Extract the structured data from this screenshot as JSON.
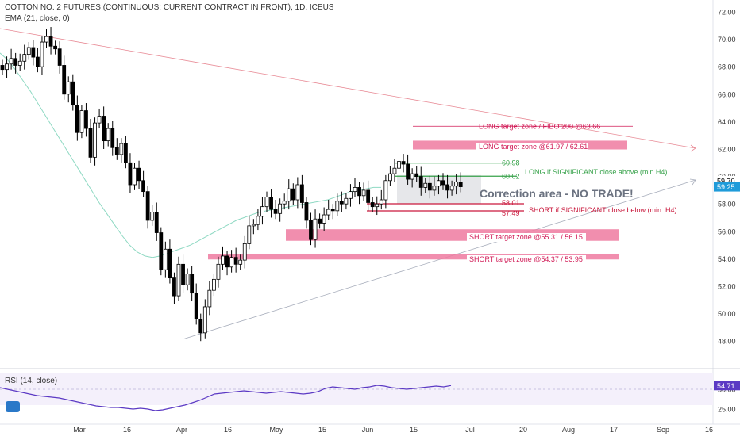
{
  "header": {
    "title": "COTTON NO. 2 FUTURES (CONTINUOUS: CURRENT CONTRACT IN FRONT), 1D, ICEUS",
    "indicator": "EMA (21, close, 0)"
  },
  "rsi": {
    "label": "RSI (14, close)",
    "value": "54.71",
    "ticks": [
      "50.00",
      "25.00"
    ]
  },
  "colors": {
    "up": "#ffffff",
    "down": "#000000",
    "ema": "#8fd9c3",
    "upper_trend": "#e88a95",
    "lower_trend": "#a7adbb",
    "zone": "#ef7aa0",
    "long_text": "#d11a56",
    "green": "#37a24a",
    "red": "#c9183c",
    "rsi": "#5b39c4",
    "price_badge": "#1f9bd9"
  },
  "chart_data": {
    "type": "candlestick",
    "y_ticks": [
      48,
      50,
      52,
      54,
      56,
      58,
      60,
      62,
      64,
      66,
      68,
      70,
      72
    ],
    "y_tick_labels": [
      "48.00",
      "50.00",
      "52.00",
      "54.00",
      "56.00",
      "58.00",
      "60.00",
      "62.00",
      "64.00",
      "66.00",
      "68.00",
      "70.00",
      "72.00"
    ],
    "x_labels": [
      "Mar",
      "16",
      "Apr",
      "16",
      "May",
      "15",
      "Jun",
      "15",
      "Jul",
      "20",
      "Aug",
      "17",
      "Sep",
      "16"
    ],
    "last_price": "59.25",
    "marked_price": "59.70",
    "closes": [
      67.8,
      68.2,
      68.6,
      68.1,
      68.4,
      68.9,
      69.4,
      68.7,
      68.0,
      69.8,
      70.2,
      69.5,
      69.3,
      68.1,
      66.0,
      66.9,
      65.2,
      63.2,
      64.8,
      63.5,
      61.4,
      63.9,
      64.4,
      62.6,
      63.5,
      62.1,
      61.6,
      62.4,
      61.0,
      59.4,
      60.6,
      59.7,
      58.9,
      56.8,
      57.4,
      55.9,
      53.2,
      54.7,
      52.6,
      51.3,
      53.6,
      52.1,
      52.9,
      51.5,
      49.6,
      48.6,
      50.5,
      51.7,
      52.5,
      53.6,
      54.2,
      53.4,
      54.1,
      53.6,
      53.9,
      55.1,
      56.4,
      56.5,
      57.1,
      57.8,
      58.5,
      57.6,
      57.3,
      58.0,
      58.2,
      59.1,
      58.3,
      59.4,
      58.1,
      56.8,
      55.4,
      56.9,
      56.6,
      57.2,
      57.6,
      57.5,
      58.2,
      58.0,
      58.4,
      58.9,
      59.2,
      58.6,
      59.0,
      58.1,
      57.8,
      58.0,
      58.3,
      59.7,
      60.2,
      60.6,
      61.1,
      60.9,
      59.8,
      60.2,
      60.0,
      59.2,
      59.5,
      59.0,
      59.3,
      59.7,
      59.4,
      59.0,
      59.3,
      59.6,
      59.25
    ],
    "ema_21": [
      69.0,
      68.5,
      67.8,
      67.0,
      66.2,
      65.3,
      64.4,
      63.5,
      62.6,
      61.7,
      60.8,
      59.9,
      59.0,
      58.1,
      57.3,
      56.5,
      55.7,
      55.0,
      54.5,
      54.2,
      54.1,
      54.2,
      54.4,
      54.6,
      54.8,
      55.0,
      55.3,
      55.6,
      55.9,
      56.2,
      56.5,
      56.8,
      57.0,
      57.2,
      57.4,
      57.5,
      57.6,
      57.7,
      57.8,
      57.9,
      58.0,
      58.1,
      58.2,
      58.3,
      58.5,
      58.7,
      58.9,
      59.0,
      59.1,
      59.2,
      59.2
    ],
    "annotations": [
      {
        "text": "LONG target zone / FIBO 200 @63.66",
        "price": 63.66,
        "kind": "line"
      },
      {
        "text": "LONG target zone @61.97 / 62.61",
        "low": 61.97,
        "high": 62.61,
        "kind": "zone"
      },
      {
        "text": "60.98",
        "price": 60.98,
        "kind": "level-green"
      },
      {
        "text": "60.02",
        "price": 60.02,
        "kind": "level-green"
      },
      {
        "text": "LONG if SIGNIFICANT close above (min H4)",
        "kind": "note-green"
      },
      {
        "text": "Correction area - NO TRADE!",
        "low": 58.0,
        "high": 60.1,
        "kind": "box"
      },
      {
        "text": "58.01",
        "price": 58.01,
        "kind": "level-red"
      },
      {
        "text": "57.49",
        "price": 57.49,
        "kind": "level-red"
      },
      {
        "text": "SHORT if SIGNIFICANT close below (min. H4)",
        "kind": "note-red"
      },
      {
        "text": "SHORT target zone @55.31 / 56.15",
        "low": 55.31,
        "high": 56.15,
        "kind": "zone"
      },
      {
        "text": "SHORT target zone @54.37 / 53.95",
        "low": 53.95,
        "high": 54.37,
        "kind": "zone"
      }
    ],
    "rsi_values": [
      52,
      50,
      48,
      46,
      44,
      42,
      41,
      40,
      39,
      37,
      35,
      33,
      31,
      29,
      28,
      27,
      27,
      26,
      25,
      26,
      25,
      23,
      24,
      26,
      28,
      30,
      33,
      36,
      40,
      44,
      45,
      46,
      47,
      48,
      47,
      46,
      45,
      46,
      47,
      46,
      45,
      44,
      45,
      47,
      51,
      53,
      52,
      51,
      50,
      52,
      53,
      55,
      54,
      52,
      51,
      50,
      51,
      52,
      53,
      54,
      53,
      54.71
    ]
  }
}
